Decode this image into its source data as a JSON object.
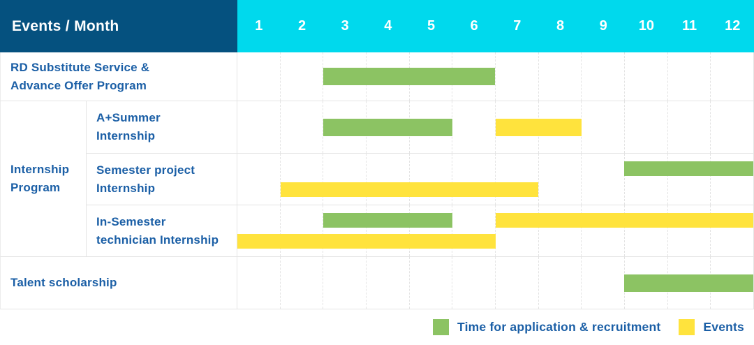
{
  "page": {
    "background": "#FFFFFF"
  },
  "header": {
    "title": "Events / Month"
  },
  "colors": {
    "header_bg": "#05517F",
    "month_header_bg": "#00D9ED",
    "header_text": "#FFFFFF",
    "label_text": "#1B5FA6",
    "application_green": "#8CC363",
    "events_yellow": "#FFE33D",
    "grid_line": "#E3E3E3",
    "cell_border": "#E4E4E4"
  },
  "legend": {
    "items": [
      {
        "label": "Time for application & recruitment",
        "series": "application",
        "color": "#8CC363"
      },
      {
        "label": "Events",
        "series": "events",
        "color": "#FFE33D"
      }
    ]
  },
  "chart_data": {
    "type": "bar",
    "variant": "gantt-schedule",
    "title": "Events / Month",
    "x_axis": {
      "unit": "month",
      "ticks": [
        "1",
        "2",
        "3",
        "4",
        "5",
        "6",
        "7",
        "8",
        "9",
        "10",
        "11",
        "12"
      ],
      "range": [
        1,
        12
      ]
    },
    "legend_entries": [
      "Time for application & recruitment",
      "Events"
    ],
    "groups": [
      {
        "name": "Internship Program",
        "label_lines": [
          "Internship",
          "Program"
        ],
        "row_indices": [
          1,
          2,
          3
        ]
      }
    ],
    "rows": [
      {
        "event": "RD Substitute Service & Advance Offer Program",
        "label_lines": [
          "RD Substitute Service &",
          "Advance Offer Program"
        ],
        "group": null,
        "bars": [
          {
            "series": "application",
            "start_month": 3,
            "end_month": 6,
            "line": 0
          }
        ]
      },
      {
        "event": "A+Summer Internship",
        "label_lines": [
          "A+Summer",
          "Internship"
        ],
        "group": "Internship Program",
        "bars": [
          {
            "series": "application",
            "start_month": 3,
            "end_month": 5,
            "line": 0
          },
          {
            "series": "events",
            "start_month": 7,
            "end_month": 8,
            "line": 0
          }
        ]
      },
      {
        "event": "Semester project Internship",
        "label_lines": [
          "Semester project",
          "Internship"
        ],
        "group": "Internship Program",
        "bars": [
          {
            "series": "application",
            "start_month": 10,
            "end_month": 12,
            "line": 0
          },
          {
            "series": "events",
            "start_month": 2,
            "end_month": 7,
            "line": 1
          }
        ]
      },
      {
        "event": "In-Semester technician Internship",
        "label_lines": [
          "In-Semester",
          "technician Internship"
        ],
        "group": "Internship Program",
        "bars": [
          {
            "series": "application",
            "start_month": 3,
            "end_month": 5,
            "line": 0
          },
          {
            "series": "events",
            "start_month": 7,
            "end_month": 12,
            "line": 0
          },
          {
            "series": "events",
            "start_month": 1,
            "end_month": 6,
            "line": 1
          }
        ]
      },
      {
        "event": "Talent scholarship",
        "label_lines": [
          "Talent scholarship"
        ],
        "group": null,
        "bars": [
          {
            "series": "application",
            "start_month": 10,
            "end_month": 12,
            "line": 0
          }
        ]
      }
    ]
  }
}
